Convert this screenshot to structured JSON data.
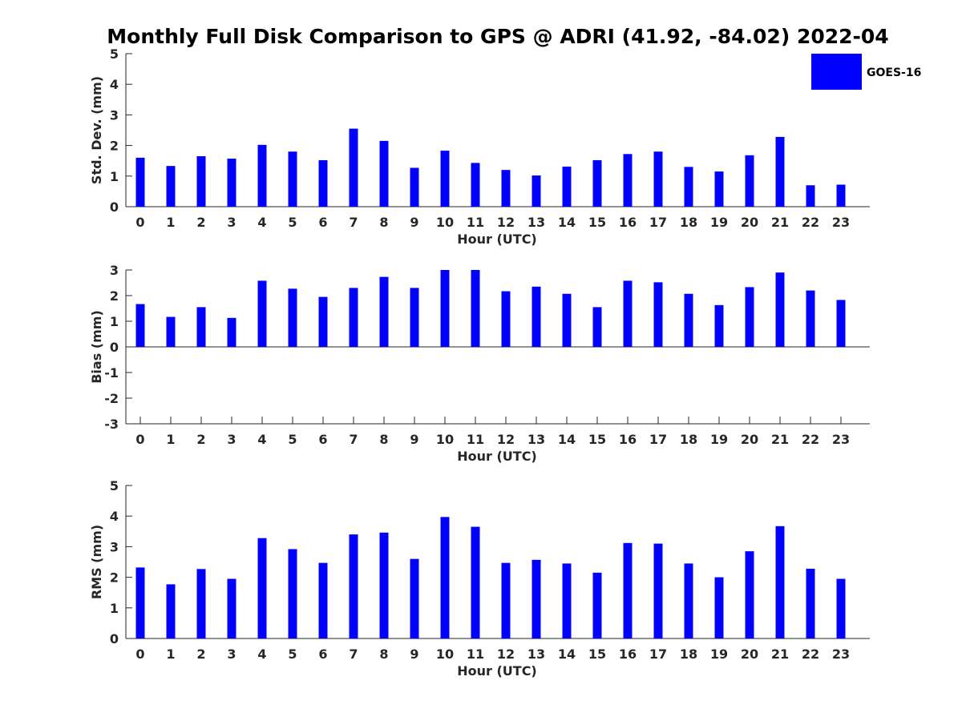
{
  "title": "Monthly Full Disk Comparison to GPS @ ADRI (41.92, -84.02) 2022-04",
  "legend": {
    "label": "GOES-16",
    "color": "#0000ff",
    "position": "top-right"
  },
  "chart_data": [
    {
      "type": "bar",
      "name": "std",
      "categories": [
        "0",
        "1",
        "2",
        "3",
        "4",
        "5",
        "6",
        "7",
        "8",
        "9",
        "10",
        "11",
        "12",
        "13",
        "14",
        "15",
        "16",
        "17",
        "18",
        "19",
        "20",
        "21",
        "22",
        "23"
      ],
      "values": [
        1.6,
        1.33,
        1.65,
        1.57,
        2.02,
        1.8,
        1.52,
        2.55,
        2.15,
        1.27,
        1.83,
        1.43,
        1.2,
        1.02,
        1.31,
        1.52,
        1.72,
        1.8,
        1.3,
        1.15,
        1.68,
        2.28,
        0.7,
        0.72
      ],
      "xlabel": "Hour (UTC)",
      "ylabel": "Std. Dev. (mm)",
      "ylim": [
        0,
        5
      ],
      "yticks": [
        "0",
        "1",
        "2",
        "3",
        "4",
        "5"
      ],
      "color": "#0000ff",
      "legend": "GOES-16",
      "grid": false
    },
    {
      "type": "bar",
      "name": "bias",
      "categories": [
        "0",
        "1",
        "2",
        "3",
        "4",
        "5",
        "6",
        "7",
        "8",
        "9",
        "10",
        "11",
        "12",
        "13",
        "14",
        "15",
        "16",
        "17",
        "18",
        "19",
        "20",
        "21",
        "22",
        "23"
      ],
      "values": [
        1.67,
        1.17,
        1.55,
        1.13,
        2.58,
        2.27,
        1.95,
        2.3,
        2.73,
        2.3,
        3.0,
        3.0,
        2.17,
        2.35,
        2.07,
        1.55,
        2.58,
        2.52,
        2.07,
        1.63,
        2.33,
        2.9,
        2.2,
        1.83
      ],
      "xlabel": "Hour (UTC)",
      "ylabel": "Bias (mm)",
      "ylim": [
        -3,
        3
      ],
      "yticks": [
        "-3",
        "-2",
        "-1",
        "0",
        "1",
        "2",
        "3"
      ],
      "color": "#0000ff",
      "grid": false
    },
    {
      "type": "bar",
      "name": "rms",
      "categories": [
        "0",
        "1",
        "2",
        "3",
        "4",
        "5",
        "6",
        "7",
        "8",
        "9",
        "10",
        "11",
        "12",
        "13",
        "14",
        "15",
        "16",
        "17",
        "18",
        "19",
        "20",
        "21",
        "22",
        "23"
      ],
      "values": [
        2.32,
        1.77,
        2.27,
        1.95,
        3.28,
        2.92,
        2.47,
        3.4,
        3.46,
        2.6,
        3.97,
        3.65,
        2.47,
        2.57,
        2.45,
        2.15,
        3.12,
        3.1,
        2.45,
        2.0,
        2.85,
        3.67,
        2.28,
        1.95
      ],
      "xlabel": "Hour (UTC)",
      "ylabel": "RMS (mm)",
      "ylim": [
        0,
        5
      ],
      "yticks": [
        "0",
        "1",
        "2",
        "3",
        "4",
        "5"
      ],
      "color": "#0000ff",
      "grid": false
    }
  ]
}
